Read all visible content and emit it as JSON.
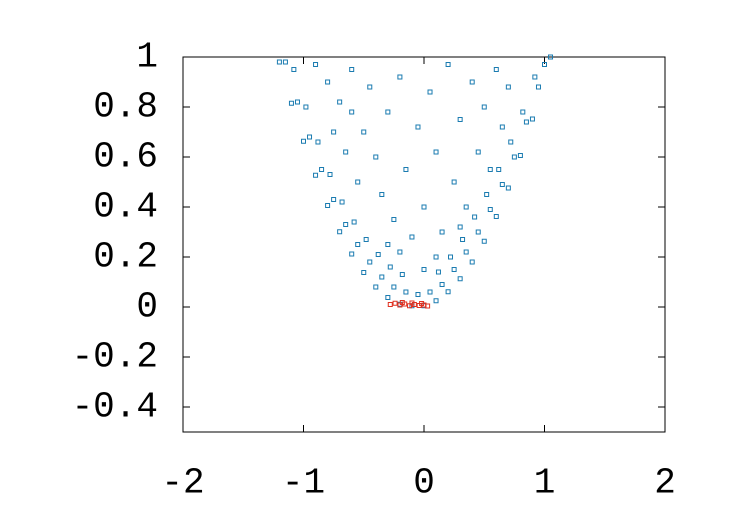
{
  "chart_data": {
    "type": "scatter",
    "xlim": [
      -2,
      2
    ],
    "ylim": [
      -0.5,
      1
    ],
    "xticks": [
      -2,
      -1,
      0,
      1,
      2
    ],
    "yticks": [
      -0.4,
      -0.2,
      0,
      0.2,
      0.4,
      0.6,
      0.8,
      1
    ],
    "series": [
      {
        "color": "#1a7bb0",
        "x": [
          -1.2,
          -1.1,
          -1.0,
          -0.9,
          -0.8,
          -0.7,
          -0.6,
          -0.5,
          -0.4,
          -0.3,
          -0.2,
          -0.1,
          0,
          0.1,
          0.2,
          0.3,
          0.4,
          0.5,
          0.6,
          0.7,
          0.8,
          0.9,
          1.05,
          -1.15,
          -1.05,
          -0.95,
          -0.85,
          -0.75,
          -0.65,
          -0.55,
          -0.45,
          -0.35,
          -0.25,
          -0.15,
          -0.05,
          0.05,
          0.15,
          0.25,
          0.35,
          0.45,
          0.55,
          0.65,
          0.75,
          0.85,
          0.95,
          1.0,
          -1.08,
          -0.98,
          -0.88,
          -0.78,
          -0.68,
          -0.58,
          -0.48,
          -0.38,
          -0.28,
          -0.18,
          0.12,
          0.22,
          0.32,
          0.42,
          0.52,
          0.62,
          0.72,
          0.82,
          0.92,
          -0.9,
          -0.8,
          -0.7,
          -0.6,
          -0.5,
          -0.45,
          -0.4,
          -0.35,
          -0.3,
          -0.25,
          -0.2,
          -0.15,
          -0.1,
          -0.05,
          0,
          0.05,
          0.1,
          0.15,
          0.2,
          0.25,
          0.3,
          0.35,
          0.4,
          0.45,
          0.5,
          0.55,
          0.6,
          0.65,
          0.7,
          -0.55,
          -0.65,
          -0.75,
          -0.6,
          0.1,
          -0.2,
          0,
          -0.3,
          0.3
        ],
        "values": [
          0.98,
          0.815,
          0.663,
          0.527,
          0.406,
          0.301,
          0.212,
          0.138,
          0.08,
          0.038,
          0.011,
          0.005,
          0.005,
          0.025,
          0.061,
          0.113,
          0.18,
          0.263,
          0.362,
          0.476,
          0.606,
          0.752,
          1.0,
          0.98,
          0.82,
          0.68,
          0.55,
          0.43,
          0.33,
          0.25,
          0.18,
          0.12,
          0.08,
          0.06,
          0.05,
          0.06,
          0.09,
          0.15,
          0.22,
          0.3,
          0.39,
          0.49,
          0.6,
          0.74,
          0.88,
          0.97,
          0.95,
          0.8,
          0.66,
          0.53,
          0.42,
          0.34,
          0.27,
          0.21,
          0.16,
          0.13,
          0.14,
          0.2,
          0.27,
          0.36,
          0.45,
          0.55,
          0.66,
          0.78,
          0.92,
          0.97,
          0.9,
          0.82,
          0.95,
          0.7,
          0.88,
          0.6,
          0.45,
          0.78,
          0.35,
          0.92,
          0.55,
          0.28,
          0.72,
          0.4,
          0.86,
          0.62,
          0.3,
          0.97,
          0.5,
          0.75,
          0.4,
          0.9,
          0.62,
          0.8,
          0.55,
          0.95,
          0.72,
          0.88,
          0.5,
          0.62,
          0.7,
          0.78,
          0.2,
          0.22,
          0.15,
          0.25,
          0.32
        ]
      },
      {
        "color": "#e03020",
        "x": [
          -0.28,
          -0.24,
          -0.2,
          -0.16,
          -0.12,
          -0.08,
          -0.04,
          0,
          0.03,
          -0.18,
          -0.1,
          -0.02
        ],
        "values": [
          0.01,
          0.015,
          0.008,
          0.012,
          0.005,
          0.01,
          0.006,
          0.008,
          0.004,
          0.018,
          0.016,
          0.014
        ]
      }
    ]
  }
}
